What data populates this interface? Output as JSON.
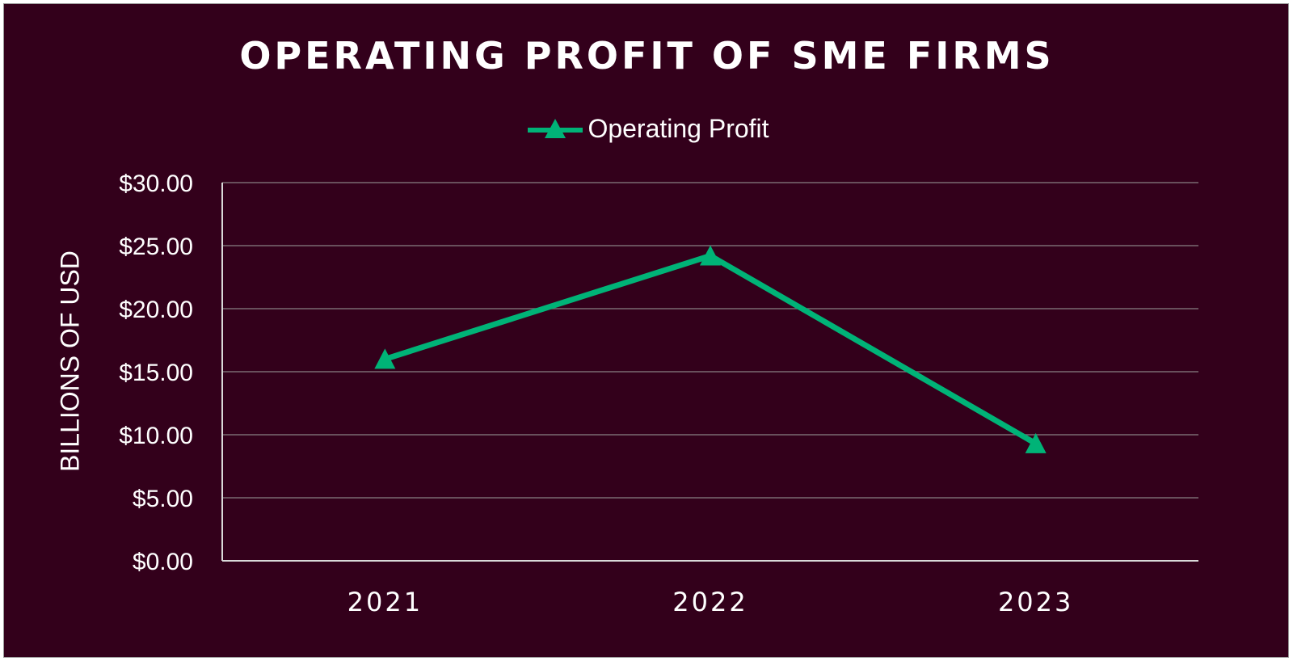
{
  "chart_data": {
    "type": "line",
    "title": "OPERATING PROFIT OF SME FIRMS",
    "ylabel": "BILLIONS OF USD",
    "xlabel": "",
    "categories": [
      "2021",
      "2022",
      "2023"
    ],
    "series": [
      {
        "name": "Operating Profit",
        "values": [
          16.0,
          24.2,
          9.3
        ],
        "color": "#00b377",
        "marker": "triangle"
      }
    ],
    "ylim": [
      0,
      30
    ],
    "yticks": [
      0,
      5,
      10,
      15,
      20,
      25,
      30
    ],
    "ytick_labels": [
      "$0.00",
      "$5.00",
      "$10.00",
      "$15.00",
      "$20.00",
      "$25.00",
      "$30.00"
    ],
    "grid": true,
    "legend_position": "top",
    "colors": {
      "background": "#33001b",
      "text": "#ffffff",
      "gridline": "#7a6a72",
      "axis": "#d9d9d9"
    }
  }
}
